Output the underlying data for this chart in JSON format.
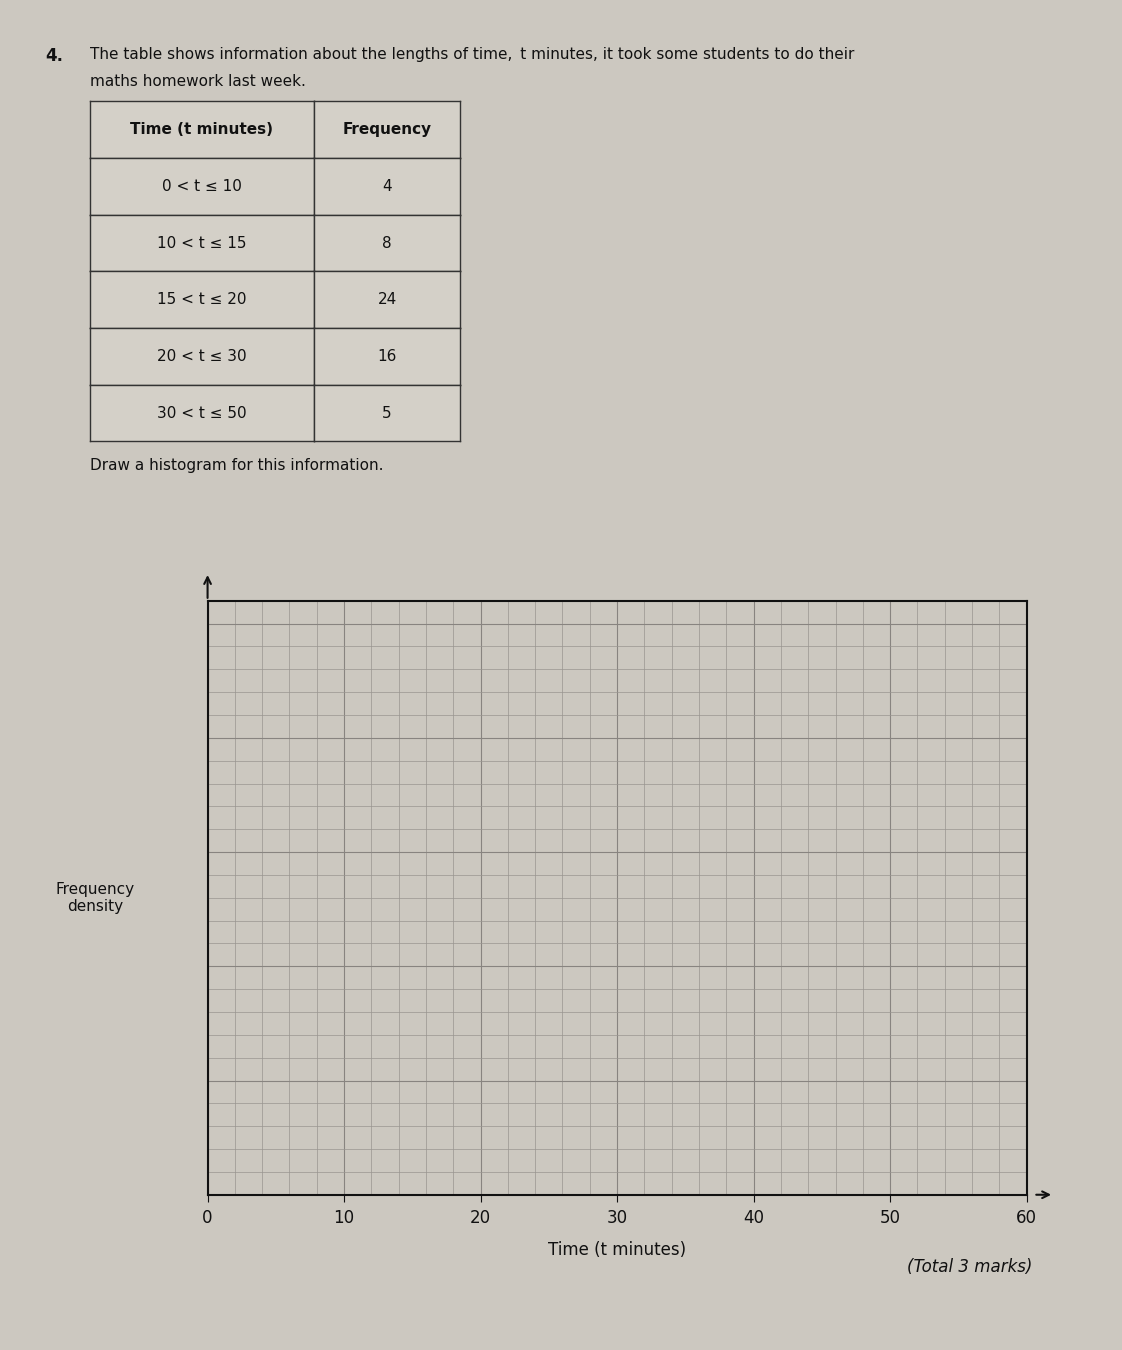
{
  "question_number": "4.",
  "line1": "The table shows information about the lengths of time, ’t’ minutes, it took some students to do their",
  "line2": "maths homework last week.",
  "table_headers": [
    "Time (t minutes)",
    "Frequency"
  ],
  "table_rows": [
    [
      "0 < t ≤ 10",
      "4"
    ],
    [
      "10 < t ≤ 15",
      "8"
    ],
    [
      "15 < t ≤ 20",
      "24"
    ],
    [
      "20 < t ≤ 30",
      "16"
    ],
    [
      "30 < t ≤ 50",
      "5"
    ]
  ],
  "instruction": "Draw a histogram for this information.",
  "xlabel": "Time (t minutes)",
  "ylabel": "Frequency\ndensity",
  "x_ticks": [
    0,
    10,
    20,
    30,
    40,
    50,
    60
  ],
  "footer_text": "(Total 3 marks)",
  "page_background": "#ccc8c0",
  "grid_bg": "#ccc8c0",
  "grid_line_color": "#999590",
  "grid_major_color": "#888480",
  "axes_color": "#111111",
  "text_color": "#111111",
  "table_bg": "#d4d0c8",
  "table_border": "#333333"
}
